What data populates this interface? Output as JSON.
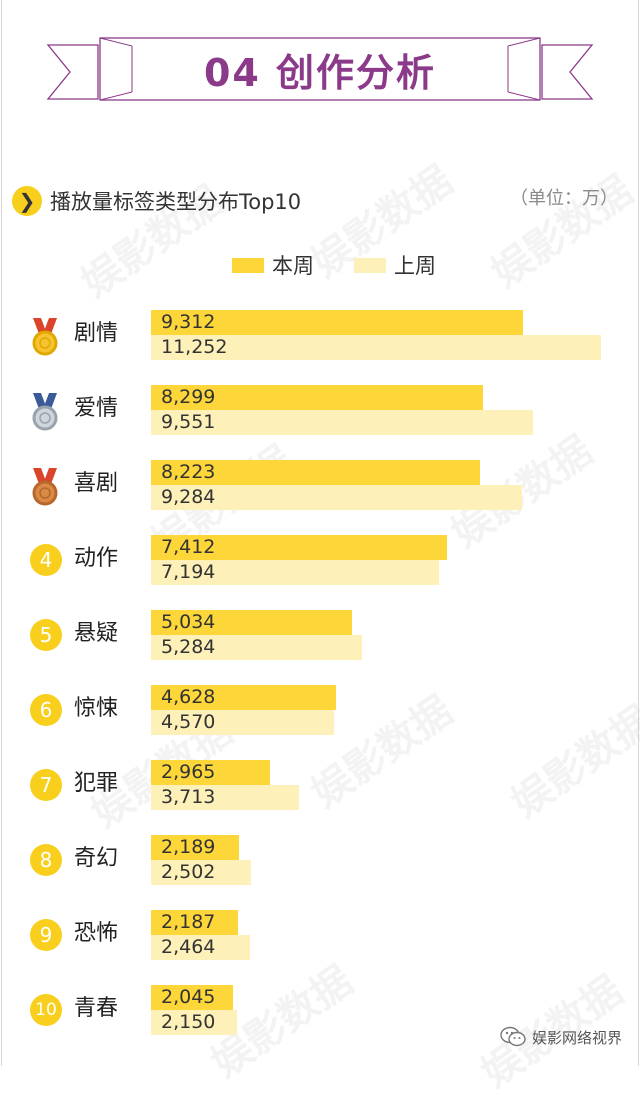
{
  "header": {
    "title": "04 创作分析"
  },
  "section": {
    "title": "播放量标签类型分布Top10",
    "unit": "（单位：万）",
    "chevron": "❯"
  },
  "watermark": "娱影数据",
  "footer": {
    "account": "娱影网络视界",
    "icon": "wechat-icon"
  },
  "colors": {
    "current": "#fdd63a",
    "previous": "#fdf0b8",
    "badge": "#f9cf1e",
    "title": "#8b3a8a"
  },
  "chart_data": {
    "type": "bar",
    "orientation": "horizontal",
    "title": "播放量标签类型分布Top10",
    "unit": "（单位：万）",
    "legend_position": "top-center",
    "categories": [
      "剧情",
      "爱情",
      "喜剧",
      "动作",
      "悬疑",
      "惊悚",
      "犯罪",
      "奇幻",
      "恐怖",
      "青春"
    ],
    "ranks": [
      "1",
      "2",
      "3",
      "4",
      "5",
      "6",
      "7",
      "8",
      "9",
      "10"
    ],
    "medals": [
      "gold",
      "silver",
      "bronze"
    ],
    "series": [
      {
        "name": "本周",
        "values": [
          9312,
          8299,
          8223,
          7412,
          5034,
          4628,
          2965,
          2189,
          2187,
          2045
        ],
        "labels": [
          "9,312",
          "8,299",
          "8,223",
          "7,412",
          "5,034",
          "4,628",
          "2,965",
          "2,189",
          "2,187",
          "2,045"
        ]
      },
      {
        "name": "上周",
        "values": [
          11252,
          9551,
          9284,
          7194,
          5284,
          4570,
          3713,
          2502,
          2464,
          2150
        ],
        "labels": [
          "11,252",
          "9,551",
          "9,284",
          "7,194",
          "5,284",
          "4,570",
          "3,713",
          "2,502",
          "2,464",
          "2,150"
        ]
      }
    ],
    "xlim": [
      0,
      11252
    ]
  }
}
